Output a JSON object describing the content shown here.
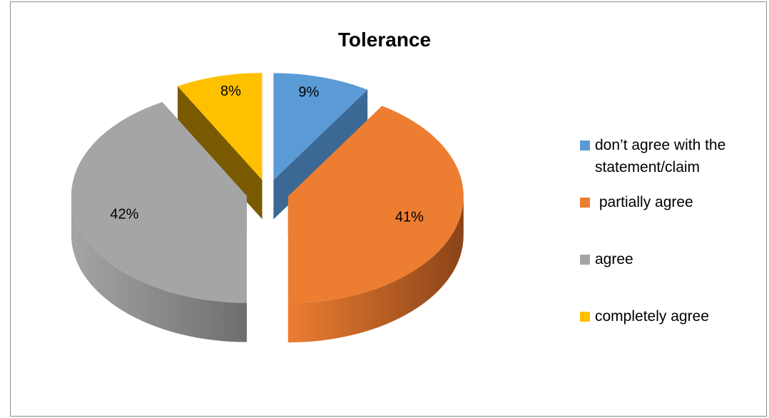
{
  "chart_data": {
    "type": "pie",
    "title": "Tolerance",
    "categories": [
      "don’t agree with the statement/claim",
      "partially agree",
      "agree",
      "completely agree"
    ],
    "values": [
      9,
      41,
      42,
      8
    ],
    "labels": [
      "9%",
      "41%",
      "42%",
      "8%"
    ],
    "colors": [
      "#5b9bd5",
      "#ed7d31",
      "#a5a5a5",
      "#ffc000"
    ],
    "side_colors": [
      "#3b6894",
      "#8a4418",
      "#6e6e6e",
      "#7a5a00"
    ],
    "legend_position": "right",
    "exploded": true,
    "three_d": true
  },
  "legend": {
    "items": [
      {
        "line1": "don’t agree with the",
        "line2": "statement/claim"
      },
      {
        "line1": " partially agree",
        "line2": ""
      },
      {
        "line1": "agree",
        "line2": ""
      },
      {
        "line1": "completely agree",
        "line2": ""
      }
    ]
  }
}
